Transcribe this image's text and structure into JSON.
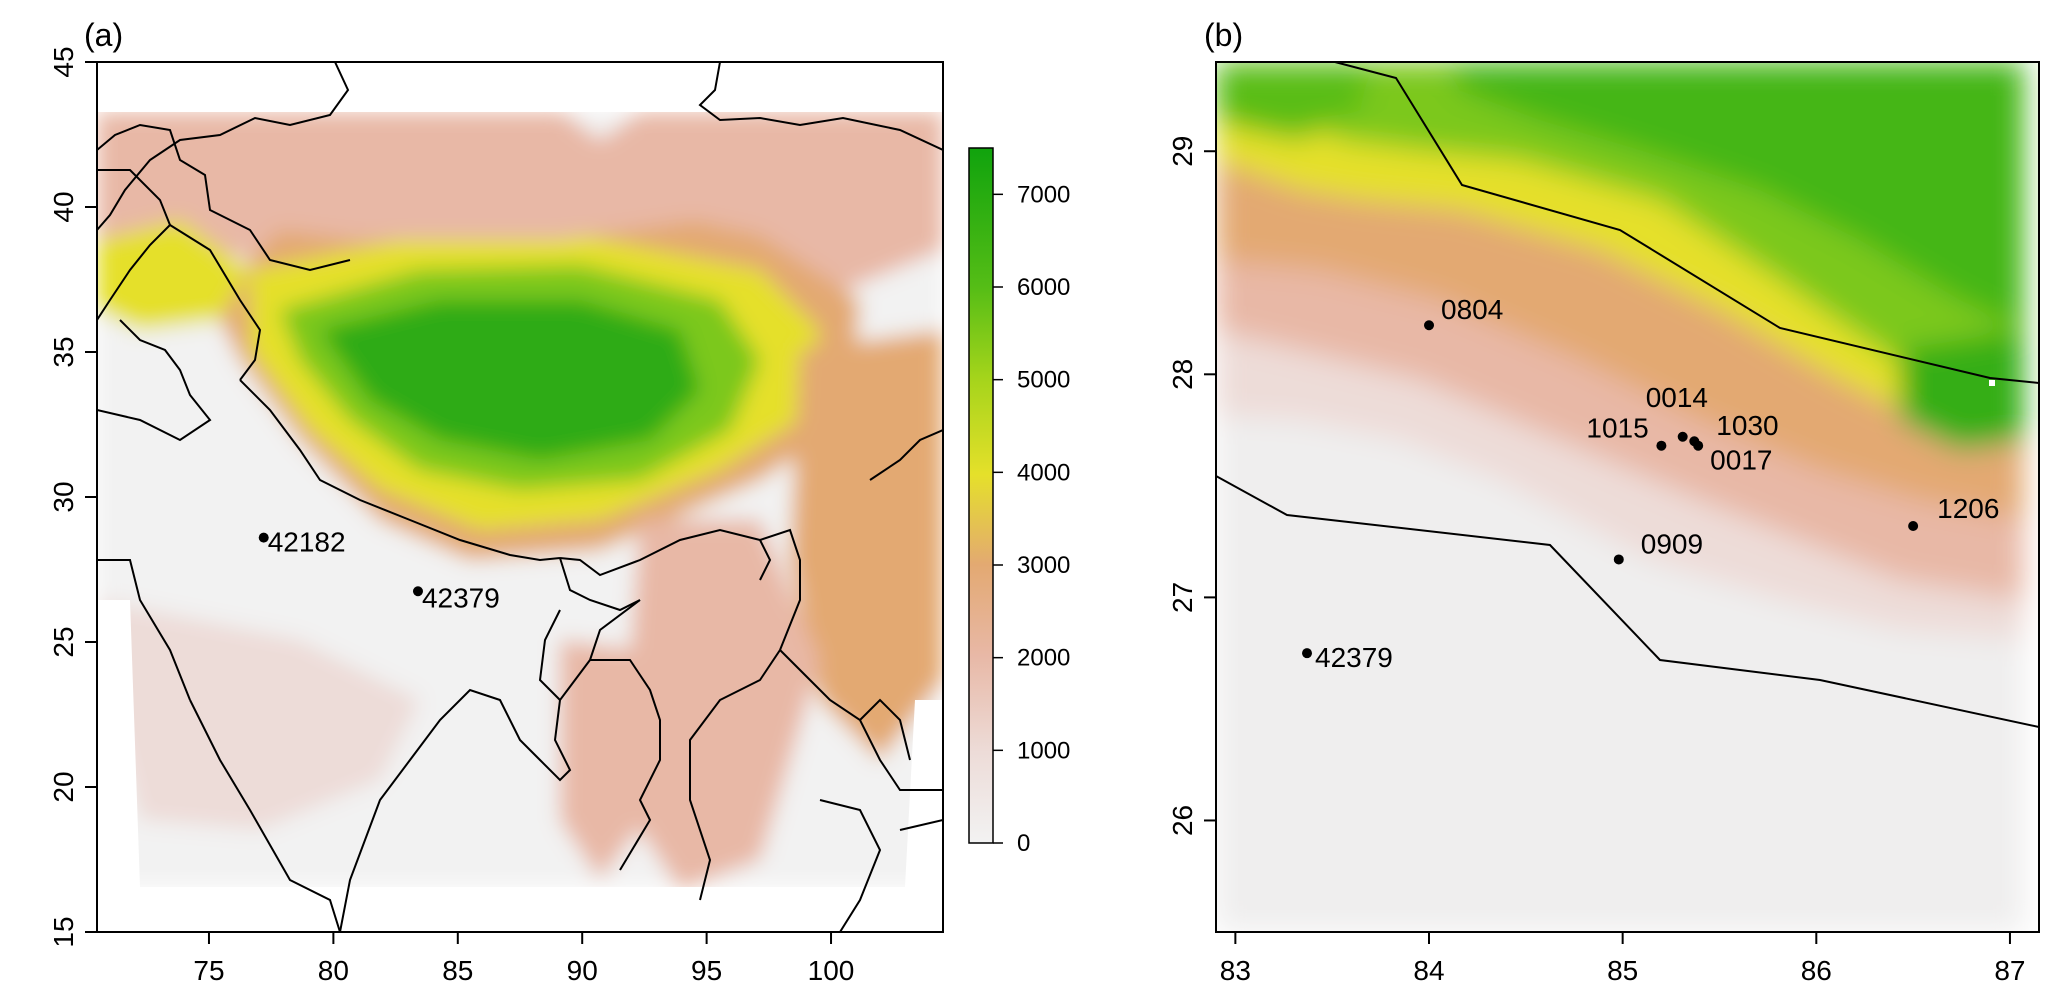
{
  "colors": {
    "elevation_low": "#f2f2f2",
    "elevation_mid_low": "#e8b8a6",
    "elevation_mid": "#e3a972",
    "elevation_mid_high": "#e5e02a",
    "elevation_high": "#10a30d",
    "border_line": "#000000"
  },
  "panels": [
    {
      "label": "(a)",
      "xlim": [
        70.5,
        104.5
      ],
      "ylim": [
        15,
        45
      ],
      "x_ticks": [
        "75",
        "80",
        "85",
        "90",
        "95",
        "100"
      ],
      "y_ticks": [
        "15",
        "20",
        "25",
        "30",
        "35",
        "40",
        "45"
      ],
      "stations": [
        {
          "id": "42182",
          "lon": 77.2,
          "lat": 28.6
        },
        {
          "id": "42379",
          "lon": 83.4,
          "lat": 26.75
        }
      ],
      "colorbar": {
        "range": [
          0,
          7500
        ],
        "ticks": [
          "0",
          "1000",
          "2000",
          "3000",
          "4000",
          "5000",
          "6000",
          "7000"
        ]
      }
    },
    {
      "label": "(b)",
      "xlim": [
        82.9,
        87.15
      ],
      "ylim": [
        25.5,
        29.4
      ],
      "x_ticks": [
        "83",
        "84",
        "85",
        "86",
        "87"
      ],
      "y_ticks": [
        "26",
        "27",
        "28",
        "29"
      ],
      "stations": [
        {
          "id": "0804",
          "lon": 84.0,
          "lat": 28.22
        },
        {
          "id": "0014",
          "lon": 85.31,
          "lat": 27.72
        },
        {
          "id": "1015",
          "lon": 85.2,
          "lat": 27.68
        },
        {
          "id": "1030",
          "lon": 85.37,
          "lat": 27.7
        },
        {
          "id": "0017",
          "lon": 85.39,
          "lat": 27.68
        },
        {
          "id": "1206",
          "lon": 86.5,
          "lat": 27.32
        },
        {
          "id": "0909",
          "lon": 84.98,
          "lat": 27.17
        },
        {
          "id": "42379",
          "lon": 83.37,
          "lat": 26.75
        }
      ]
    }
  ]
}
